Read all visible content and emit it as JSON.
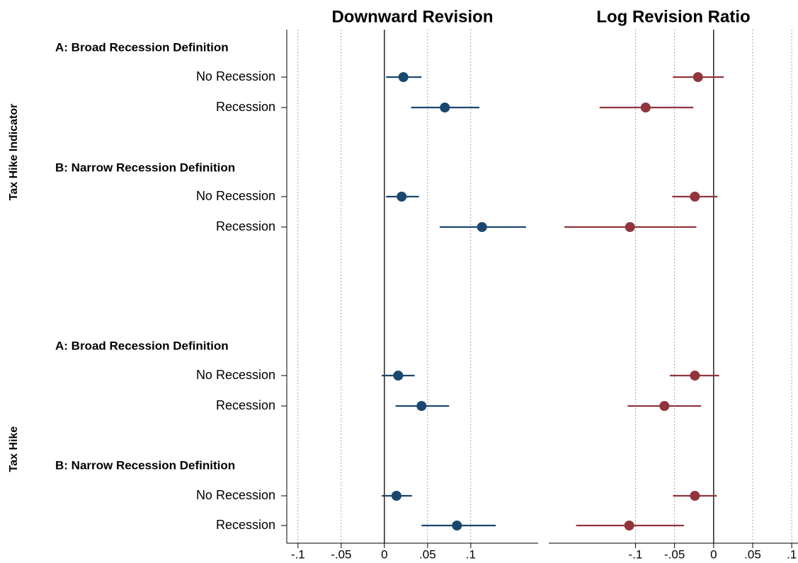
{
  "chart_data": [
    {
      "type": "errorbar",
      "title": "Downward Revision",
      "categories": [
        "No Recession",
        "Recession",
        "No Recession",
        "Recession",
        "No Recession",
        "Recession",
        "No Recession",
        "Recession"
      ],
      "group_labels": [
        "A: Broad Recession Definition",
        "B: Narrow Recession Definition",
        "A: Broad Recession Definition",
        "B: Narrow Recession Definition"
      ],
      "row_group_labels": [
        "Tax Hike Indicator",
        "Tax Hike"
      ],
      "color": "#1a476f",
      "values": [
        0.022,
        0.07,
        0.02,
        0.113,
        0.016,
        0.043,
        0.014,
        0.084
      ],
      "lower": [
        0.002,
        0.031,
        0.002,
        0.064,
        -0.003,
        0.013,
        -0.003,
        0.043
      ],
      "upper": [
        0.043,
        0.11,
        0.04,
        0.164,
        0.035,
        0.075,
        0.032,
        0.129
      ],
      "xlim": [
        -0.113,
        0.178
      ],
      "xticks": [
        {
          "value": -0.1,
          "label": "-.1"
        },
        {
          "value": -0.05,
          "label": "-.05"
        },
        0,
        {
          "value": 0.05,
          "label": ".05"
        },
        {
          "value": 0.1,
          "label": ".1"
        }
      ],
      "grid": true
    },
    {
      "type": "errorbar",
      "title": "Log Revision Ratio",
      "color": "#90353b",
      "values": [
        -0.02,
        -0.087,
        -0.024,
        -0.107,
        -0.024,
        -0.063,
        -0.024,
        -0.108
      ],
      "lower": [
        -0.052,
        -0.146,
        -0.053,
        -0.191,
        -0.056,
        -0.11,
        -0.052,
        -0.176
      ],
      "upper": [
        0.013,
        -0.026,
        0.005,
        -0.022,
        0.007,
        -0.016,
        0.004,
        -0.038
      ],
      "xlim": [
        -0.211,
        0.108
      ],
      "xticks": [
        {
          "value": -0.1,
          "label": "-.1"
        },
        {
          "value": -0.05,
          "label": "-.05"
        },
        0,
        {
          "value": 0.05,
          "label": ".05"
        },
        {
          "value": 0.1,
          "label": ".1"
        }
      ],
      "grid": true
    }
  ]
}
